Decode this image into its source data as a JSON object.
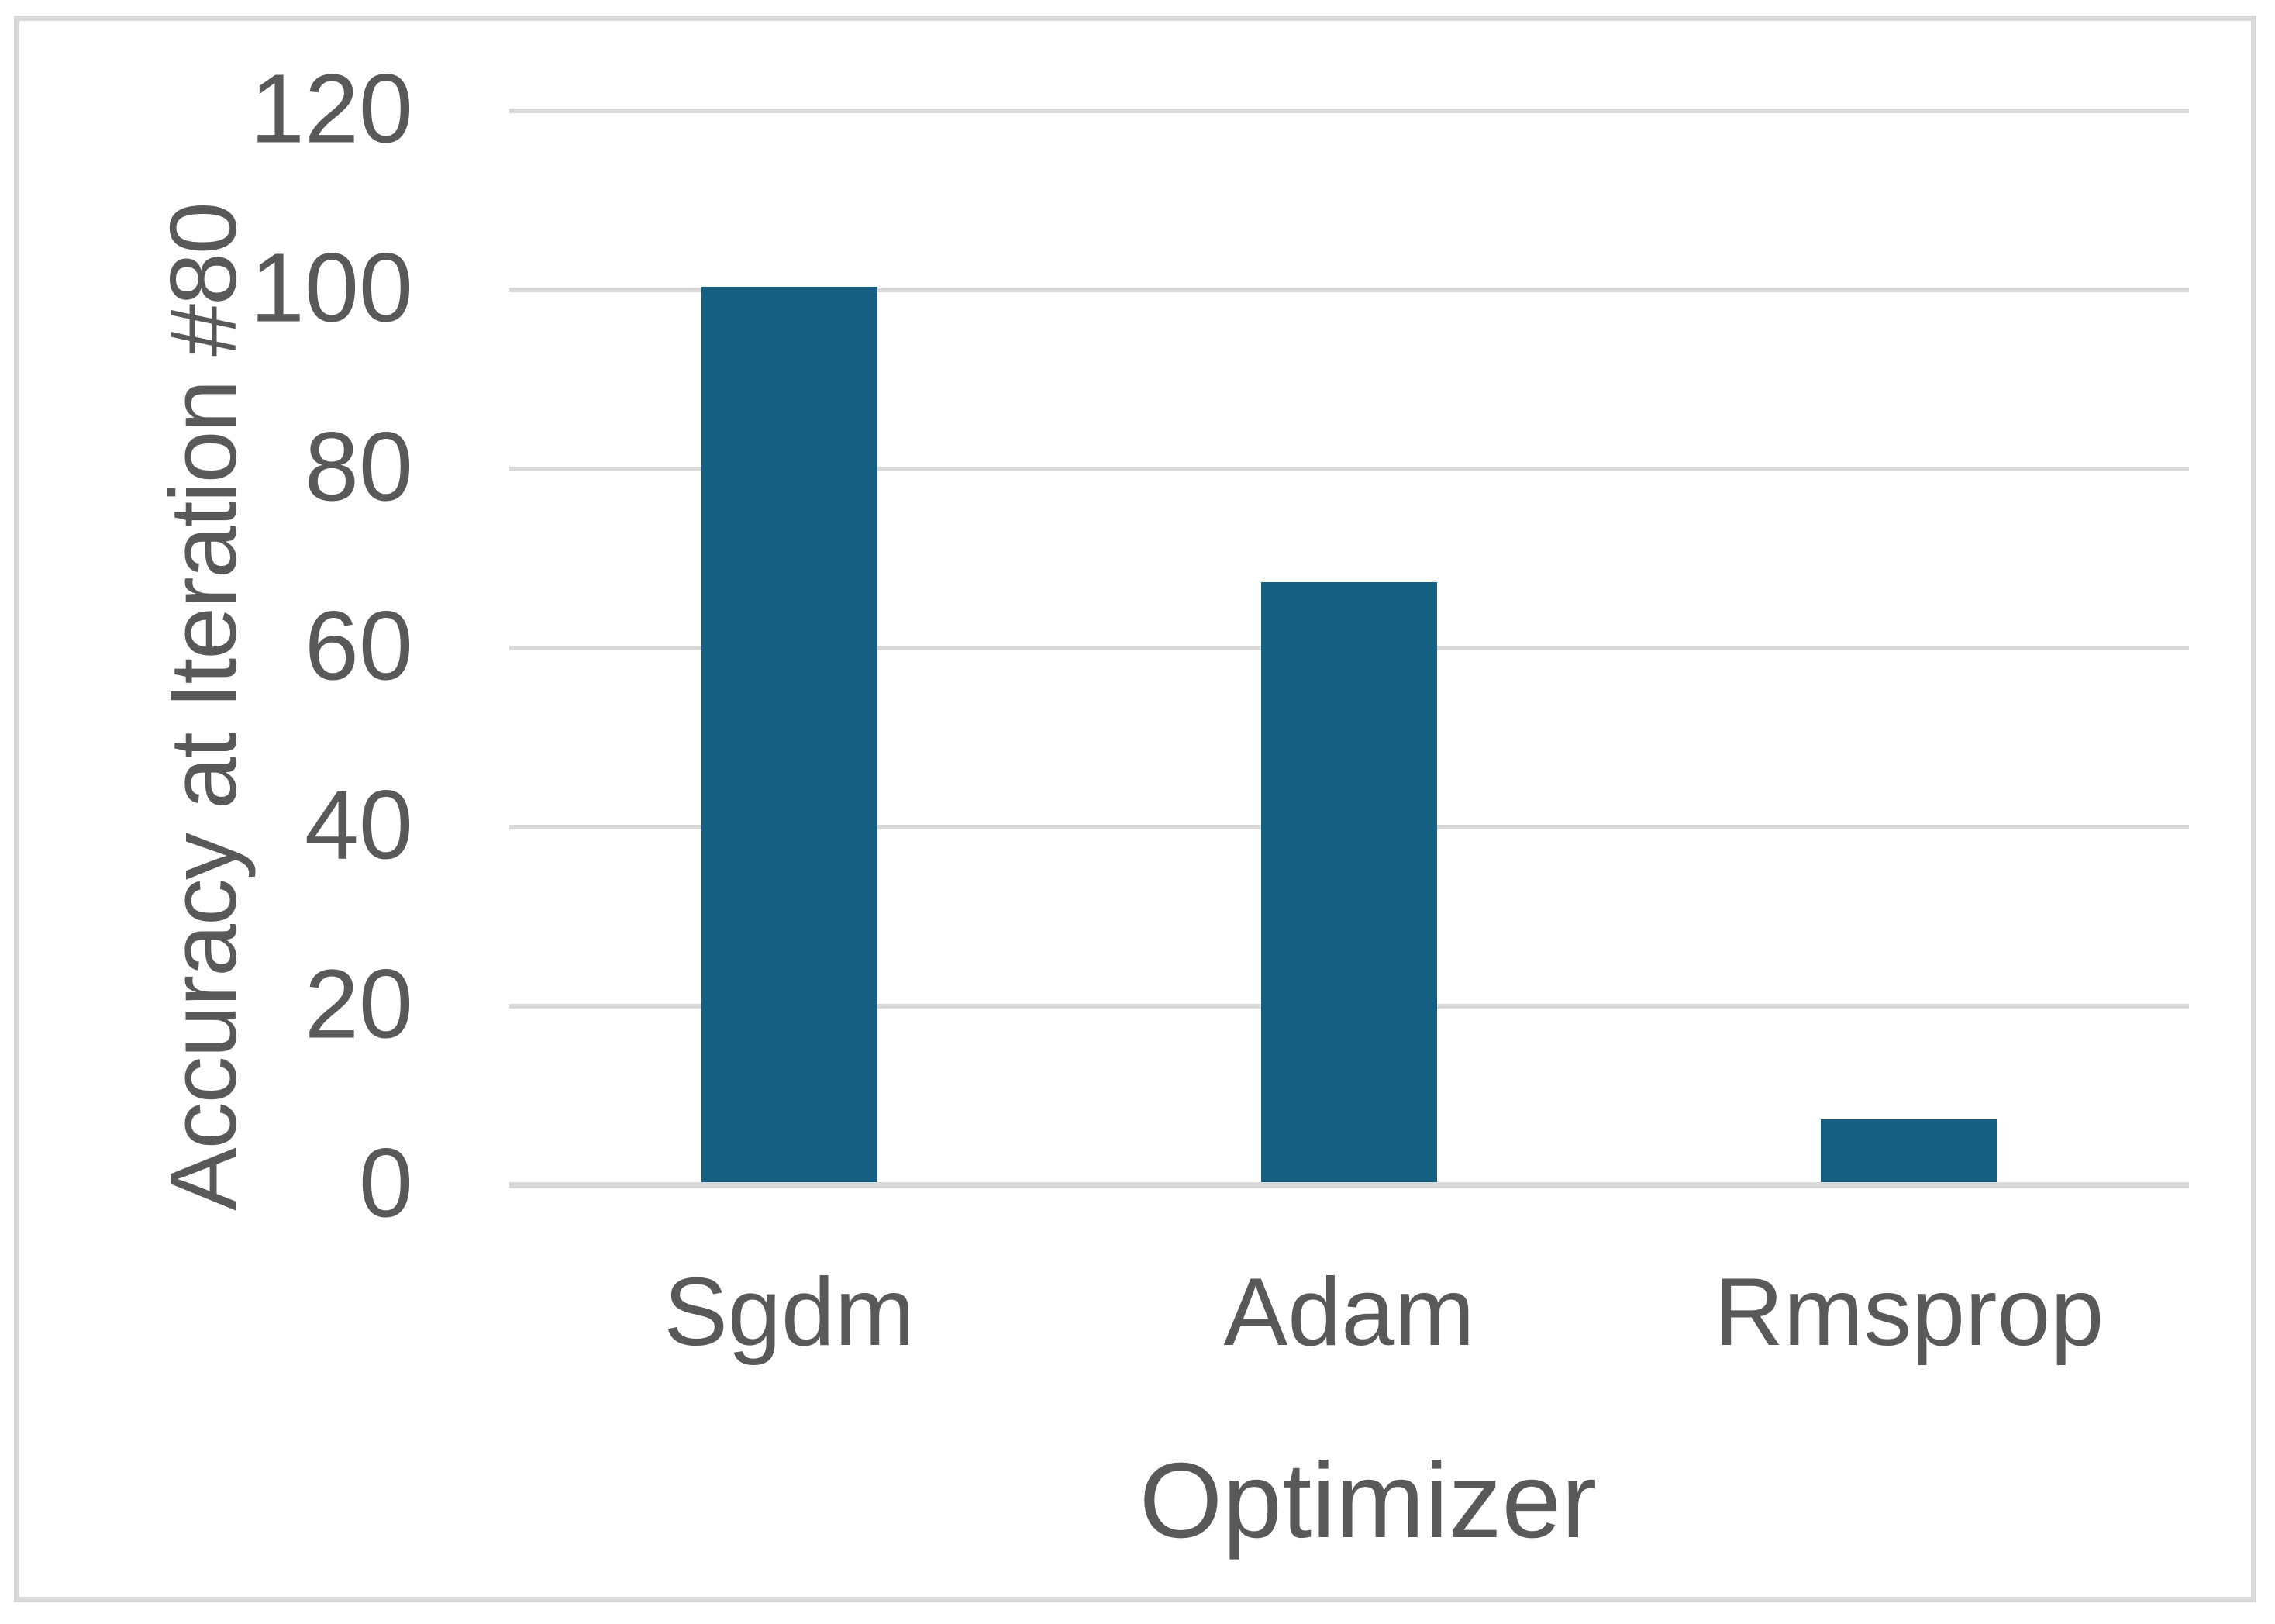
{
  "chart_data": {
    "type": "bar",
    "categories": [
      "Sgdm",
      "Adam",
      "Rmsprop"
    ],
    "values": [
      100,
      67,
      7
    ],
    "title": "",
    "xlabel": "Optimizer",
    "ylabel": "Accuracy at Iteration #80",
    "ylim": [
      0,
      120
    ],
    "yticks": [
      0,
      20,
      40,
      60,
      80,
      100,
      120
    ],
    "grid": true,
    "legend_position": "none",
    "colors": {
      "bar": "#156082",
      "gridline": "#D9D9D9",
      "frame_border": "#D9D9D9",
      "text": "#595959",
      "background": "#FFFFFF"
    }
  }
}
